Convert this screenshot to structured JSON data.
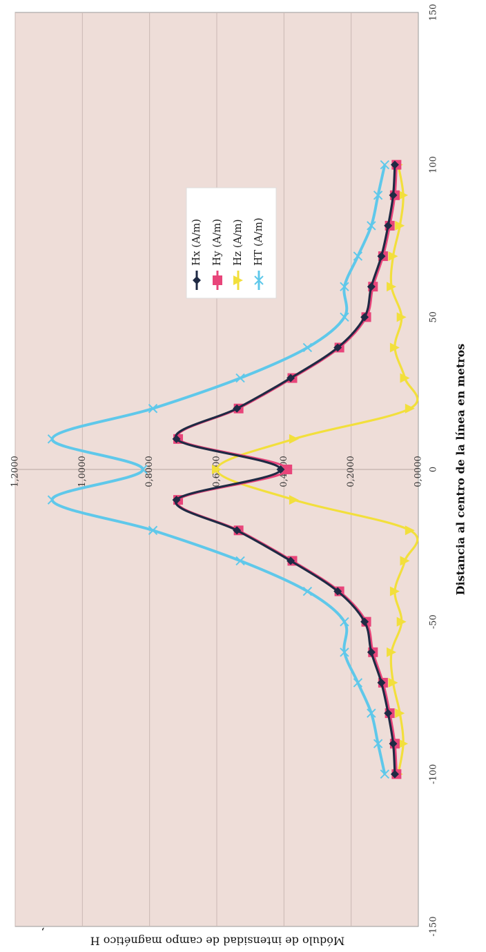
{
  "chart_data": {
    "type": "line",
    "xlabel": "Distancia al centro de la línea en metros",
    "ylabel": "Módulo de intensidad de campo magnético  H",
    "ylabel_mark": ",",
    "xlim": [
      -150,
      150
    ],
    "ylim": [
      0,
      1.2
    ],
    "x_ticks": [
      -150,
      -100,
      -50,
      0,
      50,
      100,
      150
    ],
    "x_tick_labels": [
      "-150",
      "-100",
      "-50",
      "0",
      "50",
      "100",
      "150"
    ],
    "y_ticks": [
      0,
      0.2,
      0.4,
      0.6,
      0.8,
      1.0,
      1.2
    ],
    "y_tick_labels": [
      "0,0000",
      "0,2000",
      "0,4000",
      "0,6000",
      "0,8000",
      "1,0000",
      "1,2000"
    ],
    "grid": true,
    "legend_position": "center-right",
    "x": [
      -100,
      -90,
      -80,
      -70,
      -60,
      -50,
      -40,
      -30,
      -20,
      -10,
      0,
      10,
      20,
      30,
      40,
      50,
      60,
      70,
      80,
      90,
      100
    ],
    "series": [
      {
        "name": "Hx (A/m)",
        "color": "#1f2a44",
        "marker": "diamond",
        "values": [
          0.07,
          0.075,
          0.09,
          0.11,
          0.14,
          0.16,
          0.24,
          0.38,
          0.54,
          0.72,
          0.41,
          0.72,
          0.54,
          0.38,
          0.24,
          0.16,
          0.14,
          0.11,
          0.09,
          0.075,
          0.07
        ]
      },
      {
        "name": "Hy (A/m)",
        "color": "#e8457a",
        "marker": "square",
        "values": [
          0.065,
          0.07,
          0.085,
          0.105,
          0.135,
          0.155,
          0.235,
          0.375,
          0.535,
          0.715,
          0.39,
          0.715,
          0.535,
          0.375,
          0.235,
          0.155,
          0.135,
          0.105,
          0.085,
          0.07,
          0.065
        ]
      },
      {
        "name": "Hz (A/m)",
        "color": "#f2df3c",
        "marker": "triangle",
        "values": [
          0.06,
          0.045,
          0.055,
          0.075,
          0.08,
          0.05,
          0.07,
          0.04,
          0.025,
          0.37,
          0.6,
          0.37,
          0.025,
          0.04,
          0.07,
          0.05,
          0.08,
          0.075,
          0.055,
          0.045,
          0.06
        ]
      },
      {
        "name": "HT (A/m)",
        "color": "#5fc8ea",
        "marker": "x",
        "values": [
          0.1,
          0.12,
          0.14,
          0.18,
          0.22,
          0.22,
          0.33,
          0.53,
          0.79,
          1.09,
          0.82,
          1.09,
          0.79,
          0.53,
          0.33,
          0.22,
          0.22,
          0.18,
          0.14,
          0.12,
          0.1
        ]
      }
    ]
  },
  "colors": {
    "plot_background": "#eeddd8",
    "gridline": "#c9b8b3",
    "frame": "#9a9a9a"
  }
}
